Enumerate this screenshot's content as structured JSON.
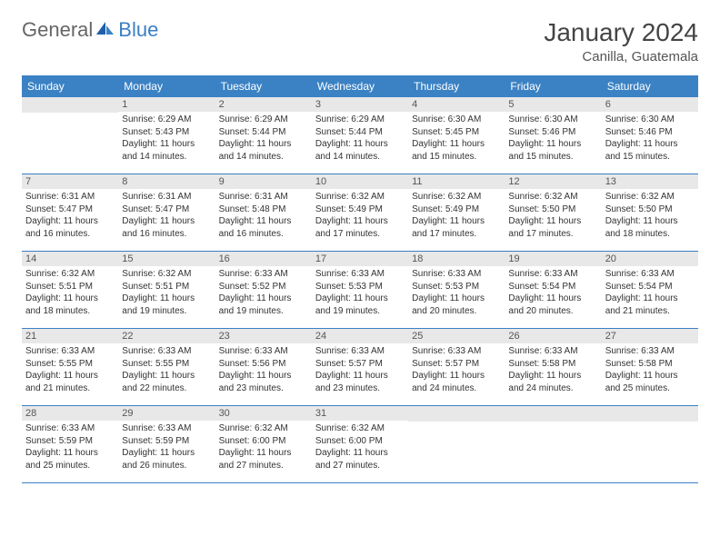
{
  "logo": {
    "text1": "General",
    "text2": "Blue"
  },
  "title": "January 2024",
  "location": "Canilla, Guatemala",
  "colors": {
    "header_bg": "#3b82c4",
    "header_text": "#ffffff",
    "daynum_bg": "#e8e8e8",
    "row_border": "#3b7fc4",
    "body_text": "#333333"
  },
  "weekdays": [
    "Sunday",
    "Monday",
    "Tuesday",
    "Wednesday",
    "Thursday",
    "Friday",
    "Saturday"
  ],
  "weeks": [
    [
      {
        "n": "",
        "sr": "",
        "ss": "",
        "dl": ""
      },
      {
        "n": "1",
        "sr": "Sunrise: 6:29 AM",
        "ss": "Sunset: 5:43 PM",
        "dl": "Daylight: 11 hours and 14 minutes."
      },
      {
        "n": "2",
        "sr": "Sunrise: 6:29 AM",
        "ss": "Sunset: 5:44 PM",
        "dl": "Daylight: 11 hours and 14 minutes."
      },
      {
        "n": "3",
        "sr": "Sunrise: 6:29 AM",
        "ss": "Sunset: 5:44 PM",
        "dl": "Daylight: 11 hours and 14 minutes."
      },
      {
        "n": "4",
        "sr": "Sunrise: 6:30 AM",
        "ss": "Sunset: 5:45 PM",
        "dl": "Daylight: 11 hours and 15 minutes."
      },
      {
        "n": "5",
        "sr": "Sunrise: 6:30 AM",
        "ss": "Sunset: 5:46 PM",
        "dl": "Daylight: 11 hours and 15 minutes."
      },
      {
        "n": "6",
        "sr": "Sunrise: 6:30 AM",
        "ss": "Sunset: 5:46 PM",
        "dl": "Daylight: 11 hours and 15 minutes."
      }
    ],
    [
      {
        "n": "7",
        "sr": "Sunrise: 6:31 AM",
        "ss": "Sunset: 5:47 PM",
        "dl": "Daylight: 11 hours and 16 minutes."
      },
      {
        "n": "8",
        "sr": "Sunrise: 6:31 AM",
        "ss": "Sunset: 5:47 PM",
        "dl": "Daylight: 11 hours and 16 minutes."
      },
      {
        "n": "9",
        "sr": "Sunrise: 6:31 AM",
        "ss": "Sunset: 5:48 PM",
        "dl": "Daylight: 11 hours and 16 minutes."
      },
      {
        "n": "10",
        "sr": "Sunrise: 6:32 AM",
        "ss": "Sunset: 5:49 PM",
        "dl": "Daylight: 11 hours and 17 minutes."
      },
      {
        "n": "11",
        "sr": "Sunrise: 6:32 AM",
        "ss": "Sunset: 5:49 PM",
        "dl": "Daylight: 11 hours and 17 minutes."
      },
      {
        "n": "12",
        "sr": "Sunrise: 6:32 AM",
        "ss": "Sunset: 5:50 PM",
        "dl": "Daylight: 11 hours and 17 minutes."
      },
      {
        "n": "13",
        "sr": "Sunrise: 6:32 AM",
        "ss": "Sunset: 5:50 PM",
        "dl": "Daylight: 11 hours and 18 minutes."
      }
    ],
    [
      {
        "n": "14",
        "sr": "Sunrise: 6:32 AM",
        "ss": "Sunset: 5:51 PM",
        "dl": "Daylight: 11 hours and 18 minutes."
      },
      {
        "n": "15",
        "sr": "Sunrise: 6:32 AM",
        "ss": "Sunset: 5:51 PM",
        "dl": "Daylight: 11 hours and 19 minutes."
      },
      {
        "n": "16",
        "sr": "Sunrise: 6:33 AM",
        "ss": "Sunset: 5:52 PM",
        "dl": "Daylight: 11 hours and 19 minutes."
      },
      {
        "n": "17",
        "sr": "Sunrise: 6:33 AM",
        "ss": "Sunset: 5:53 PM",
        "dl": "Daylight: 11 hours and 19 minutes."
      },
      {
        "n": "18",
        "sr": "Sunrise: 6:33 AM",
        "ss": "Sunset: 5:53 PM",
        "dl": "Daylight: 11 hours and 20 minutes."
      },
      {
        "n": "19",
        "sr": "Sunrise: 6:33 AM",
        "ss": "Sunset: 5:54 PM",
        "dl": "Daylight: 11 hours and 20 minutes."
      },
      {
        "n": "20",
        "sr": "Sunrise: 6:33 AM",
        "ss": "Sunset: 5:54 PM",
        "dl": "Daylight: 11 hours and 21 minutes."
      }
    ],
    [
      {
        "n": "21",
        "sr": "Sunrise: 6:33 AM",
        "ss": "Sunset: 5:55 PM",
        "dl": "Daylight: 11 hours and 21 minutes."
      },
      {
        "n": "22",
        "sr": "Sunrise: 6:33 AM",
        "ss": "Sunset: 5:55 PM",
        "dl": "Daylight: 11 hours and 22 minutes."
      },
      {
        "n": "23",
        "sr": "Sunrise: 6:33 AM",
        "ss": "Sunset: 5:56 PM",
        "dl": "Daylight: 11 hours and 23 minutes."
      },
      {
        "n": "24",
        "sr": "Sunrise: 6:33 AM",
        "ss": "Sunset: 5:57 PM",
        "dl": "Daylight: 11 hours and 23 minutes."
      },
      {
        "n": "25",
        "sr": "Sunrise: 6:33 AM",
        "ss": "Sunset: 5:57 PM",
        "dl": "Daylight: 11 hours and 24 minutes."
      },
      {
        "n": "26",
        "sr": "Sunrise: 6:33 AM",
        "ss": "Sunset: 5:58 PM",
        "dl": "Daylight: 11 hours and 24 minutes."
      },
      {
        "n": "27",
        "sr": "Sunrise: 6:33 AM",
        "ss": "Sunset: 5:58 PM",
        "dl": "Daylight: 11 hours and 25 minutes."
      }
    ],
    [
      {
        "n": "28",
        "sr": "Sunrise: 6:33 AM",
        "ss": "Sunset: 5:59 PM",
        "dl": "Daylight: 11 hours and 25 minutes."
      },
      {
        "n": "29",
        "sr": "Sunrise: 6:33 AM",
        "ss": "Sunset: 5:59 PM",
        "dl": "Daylight: 11 hours and 26 minutes."
      },
      {
        "n": "30",
        "sr": "Sunrise: 6:32 AM",
        "ss": "Sunset: 6:00 PM",
        "dl": "Daylight: 11 hours and 27 minutes."
      },
      {
        "n": "31",
        "sr": "Sunrise: 6:32 AM",
        "ss": "Sunset: 6:00 PM",
        "dl": "Daylight: 11 hours and 27 minutes."
      },
      {
        "n": "",
        "sr": "",
        "ss": "",
        "dl": ""
      },
      {
        "n": "",
        "sr": "",
        "ss": "",
        "dl": ""
      },
      {
        "n": "",
        "sr": "",
        "ss": "",
        "dl": ""
      }
    ]
  ]
}
